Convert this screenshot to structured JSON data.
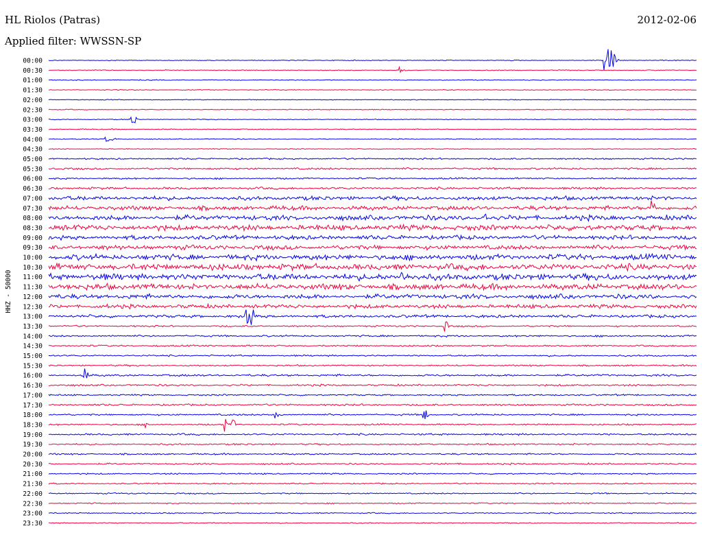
{
  "header": {
    "station": "HL Riolos (Patras)",
    "date": "2012-02-06",
    "filter": "Applied filter: WWSSN-SP"
  },
  "chart_data": {
    "type": "line",
    "channel_label": "HHZ - 50000",
    "colors": [
      "#0000e6",
      "#f0003c"
    ],
    "rows": [
      {
        "label": "00:00",
        "noise": 0.06
      },
      {
        "label": "00:30",
        "noise": 0.06
      },
      {
        "label": "01:00",
        "noise": 0.06
      },
      {
        "label": "01:30",
        "noise": 0.06
      },
      {
        "label": "02:00",
        "noise": 0.06
      },
      {
        "label": "02:30",
        "noise": 0.06
      },
      {
        "label": "03:00",
        "noise": 0.06
      },
      {
        "label": "03:30",
        "noise": 0.07
      },
      {
        "label": "04:00",
        "noise": 0.06
      },
      {
        "label": "04:30",
        "noise": 0.06
      },
      {
        "label": "05:00",
        "noise": 0.12
      },
      {
        "label": "05:30",
        "noise": 0.14
      },
      {
        "label": "06:00",
        "noise": 0.12
      },
      {
        "label": "06:30",
        "noise": 0.18
      },
      {
        "label": "07:00",
        "noise": 0.3
      },
      {
        "label": "07:30",
        "noise": 0.32
      },
      {
        "label": "08:00",
        "noise": 0.38
      },
      {
        "label": "08:30",
        "noise": 0.42
      },
      {
        "label": "09:00",
        "noise": 0.32
      },
      {
        "label": "09:30",
        "noise": 0.34
      },
      {
        "label": "10:00",
        "noise": 0.42
      },
      {
        "label": "10:30",
        "noise": 0.48
      },
      {
        "label": "11:00",
        "noise": 0.48
      },
      {
        "label": "11:30",
        "noise": 0.45
      },
      {
        "label": "12:00",
        "noise": 0.35
      },
      {
        "label": "12:30",
        "noise": 0.3
      },
      {
        "label": "13:00",
        "noise": 0.22
      },
      {
        "label": "13:30",
        "noise": 0.12
      },
      {
        "label": "14:00",
        "noise": 0.14
      },
      {
        "label": "14:30",
        "noise": 0.12
      },
      {
        "label": "15:00",
        "noise": 0.12
      },
      {
        "label": "15:30",
        "noise": 0.12
      },
      {
        "label": "16:00",
        "noise": 0.16
      },
      {
        "label": "16:30",
        "noise": 0.14
      },
      {
        "label": "17:00",
        "noise": 0.12
      },
      {
        "label": "17:30",
        "noise": 0.14
      },
      {
        "label": "18:00",
        "noise": 0.13
      },
      {
        "label": "18:30",
        "noise": 0.12
      },
      {
        "label": "19:00",
        "noise": 0.14
      },
      {
        "label": "19:30",
        "noise": 0.12
      },
      {
        "label": "20:00",
        "noise": 0.12
      },
      {
        "label": "20:30",
        "noise": 0.12
      },
      {
        "label": "21:00",
        "noise": 0.11
      },
      {
        "label": "21:30",
        "noise": 0.1
      },
      {
        "label": "22:00",
        "noise": 0.1
      },
      {
        "label": "22:30",
        "noise": 0.09
      },
      {
        "label": "23:00",
        "noise": 0.09
      },
      {
        "label": "23:30",
        "noise": 0.08
      }
    ]
  }
}
